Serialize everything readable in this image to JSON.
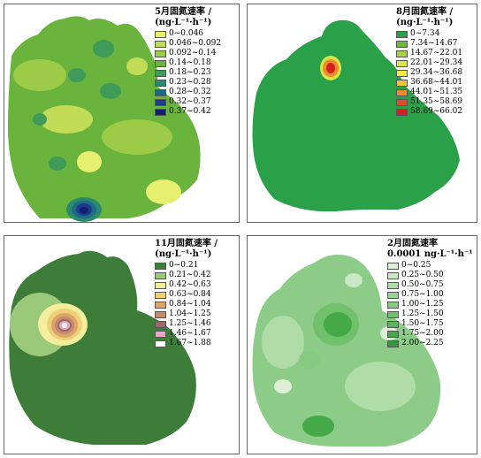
{
  "panels": [
    {
      "id": "may",
      "title_line1": "5月固氮速率 /",
      "title_line2": "(ng·L⁻¹·h⁻¹)",
      "base_color": "#6ab43e",
      "legend": [
        {
          "label": "0~0.046",
          "color": "#e6f06e"
        },
        {
          "label": "0.046~0.092",
          "color": "#c2dc58"
        },
        {
          "label": "0.092~0.14",
          "color": "#9ccb48"
        },
        {
          "label": "0.14~0.18",
          "color": "#6ab43e"
        },
        {
          "label": "0.18~0.23",
          "color": "#3e9c58"
        },
        {
          "label": "0.23~0.28",
          "color": "#2a8a6e"
        },
        {
          "label": "0.28~0.32",
          "color": "#1e6a86"
        },
        {
          "label": "0.32~0.37",
          "color": "#1c3c8c"
        },
        {
          "label": "0.37~0.42",
          "color": "#141e70"
        }
      ]
    },
    {
      "id": "aug",
      "title_line1": "8月固氮速率 /",
      "title_line2": "(ng·L⁻¹·h⁻¹)",
      "base_color": "#2aa048",
      "legend": [
        {
          "label": "0~7.34",
          "color": "#2aa048"
        },
        {
          "label": "7.34~14.67",
          "color": "#6cba3c"
        },
        {
          "label": "14.67~22.01",
          "color": "#a6d046"
        },
        {
          "label": "22.01~29.34",
          "color": "#d8e448"
        },
        {
          "label": "29.34~36.68",
          "color": "#f4ec3c"
        },
        {
          "label": "36.68~44.01",
          "color": "#f0c434"
        },
        {
          "label": "44.01~51.35",
          "color": "#ec8a2c"
        },
        {
          "label": "51.35~58.69",
          "color": "#e44a26"
        },
        {
          "label": "58.69~66.02",
          "color": "#d61e1e"
        }
      ]
    },
    {
      "id": "nov",
      "title_line1": "11月固氮速率 /",
      "title_line2": "(ng·L⁻¹·h⁻¹)",
      "base_color": "#3e7c3a",
      "legend": [
        {
          "label": "0~0.21",
          "color": "#3e7c3a"
        },
        {
          "label": "0.21~0.42",
          "color": "#9cc87a"
        },
        {
          "label": "0.42~0.63",
          "color": "#f2ee9c"
        },
        {
          "label": "0.63~0.84",
          "color": "#eed078"
        },
        {
          "label": "0.84~1.04",
          "color": "#dca468"
        },
        {
          "label": "1.04~1.25",
          "color": "#c48a6c"
        },
        {
          "label": "1.25~1.46",
          "color": "#9a6a6c"
        },
        {
          "label": "1.46~1.67",
          "color": "#e8a8c8"
        },
        {
          "label": "1.67~1.88",
          "color": "#ffffff"
        }
      ]
    },
    {
      "id": "feb",
      "title_line1": "2月固氮速率",
      "title_line2": "0.0001 ng·L⁻¹·h⁻¹",
      "base_color": "#8ccc88",
      "legend": [
        {
          "label": "0~0.25",
          "color": "#ddf0d6"
        },
        {
          "label": "0.25~0.50",
          "color": "#c8e8c2"
        },
        {
          "label": "0.50~0.75",
          "color": "#b0dca8"
        },
        {
          "label": "0.75~1.00",
          "color": "#9ad494"
        },
        {
          "label": "1.00~1.25",
          "color": "#86cc80"
        },
        {
          "label": "1.25~1.50",
          "color": "#70c06c"
        },
        {
          "label": "1.50~1.75",
          "color": "#5ab65a"
        },
        {
          "label": "1.75~2.00",
          "color": "#44aa48"
        },
        {
          "label": "2.00~2.25",
          "color": "#2e9c3a"
        }
      ]
    }
  ]
}
